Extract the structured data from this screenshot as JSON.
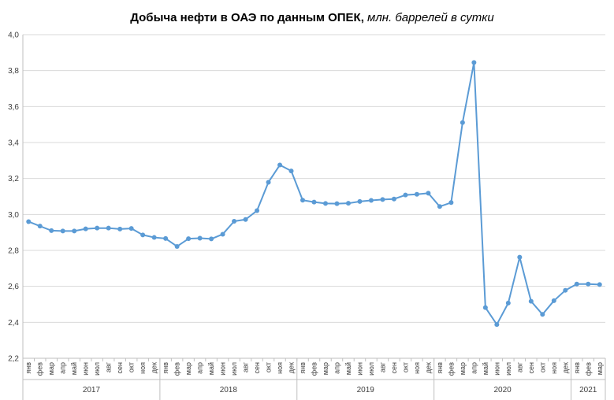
{
  "title": {
    "main": "Добыча  нефти в ОАЭ по данным ОПЕК, ",
    "subtitle": "млн. баррелей в сутки"
  },
  "colors": {
    "line": "#5b9bd5",
    "grid": "#d9d9d9"
  },
  "chart_data": {
    "type": "line",
    "title": "Добыча  нефти в ОАЭ по данным ОПЕК, млн. баррелей в сутки",
    "xlabel": "",
    "ylabel": "",
    "ylim": [
      2.2,
      4.0
    ],
    "yticks": [
      "2,2",
      "2,4",
      "2,6",
      "2,8",
      "3,0",
      "3,2",
      "3,4",
      "3,6",
      "3,8",
      "4,0"
    ],
    "grid": true,
    "legend": "none",
    "years": [
      {
        "label": "2017",
        "months": 12
      },
      {
        "label": "2018",
        "months": 12
      },
      {
        "label": "2019",
        "months": 12
      },
      {
        "label": "2020",
        "months": 12
      },
      {
        "label": "2021",
        "months": 3
      }
    ],
    "categories": [
      "янв",
      "фев",
      "мар",
      "апр",
      "май",
      "июн",
      "июл",
      "авг",
      "сен",
      "окт",
      "ноя",
      "дек",
      "янв",
      "фев",
      "мар",
      "апр",
      "май",
      "июн",
      "июл",
      "авг",
      "сен",
      "окт",
      "ноя",
      "дек",
      "янв",
      "фев",
      "мар",
      "апр",
      "май",
      "июн",
      "июл",
      "авг",
      "сен",
      "окт",
      "ноя",
      "дек",
      "янв",
      "фев",
      "мар",
      "апр",
      "май",
      "июн",
      "июл",
      "авг",
      "сен",
      "окт",
      "ноя",
      "дек",
      "янв",
      "фев",
      "мар"
    ],
    "series": [
      {
        "values": [
          2.96,
          2.935,
          2.91,
          2.908,
          2.908,
          2.92,
          2.924,
          2.924,
          2.919,
          2.922,
          2.886,
          2.872,
          2.866,
          2.822,
          2.865,
          2.868,
          2.864,
          2.89,
          2.962,
          2.972,
          3.021,
          3.179,
          3.275,
          3.242,
          3.079,
          3.069,
          3.061,
          3.06,
          3.062,
          3.072,
          3.078,
          3.083,
          3.086,
          3.108,
          3.112,
          3.118,
          3.044,
          3.066,
          3.511,
          3.845,
          2.482,
          2.388,
          2.507,
          2.762,
          2.517,
          2.444,
          2.52,
          2.578,
          2.613,
          2.613,
          2.61
        ]
      }
    ]
  }
}
